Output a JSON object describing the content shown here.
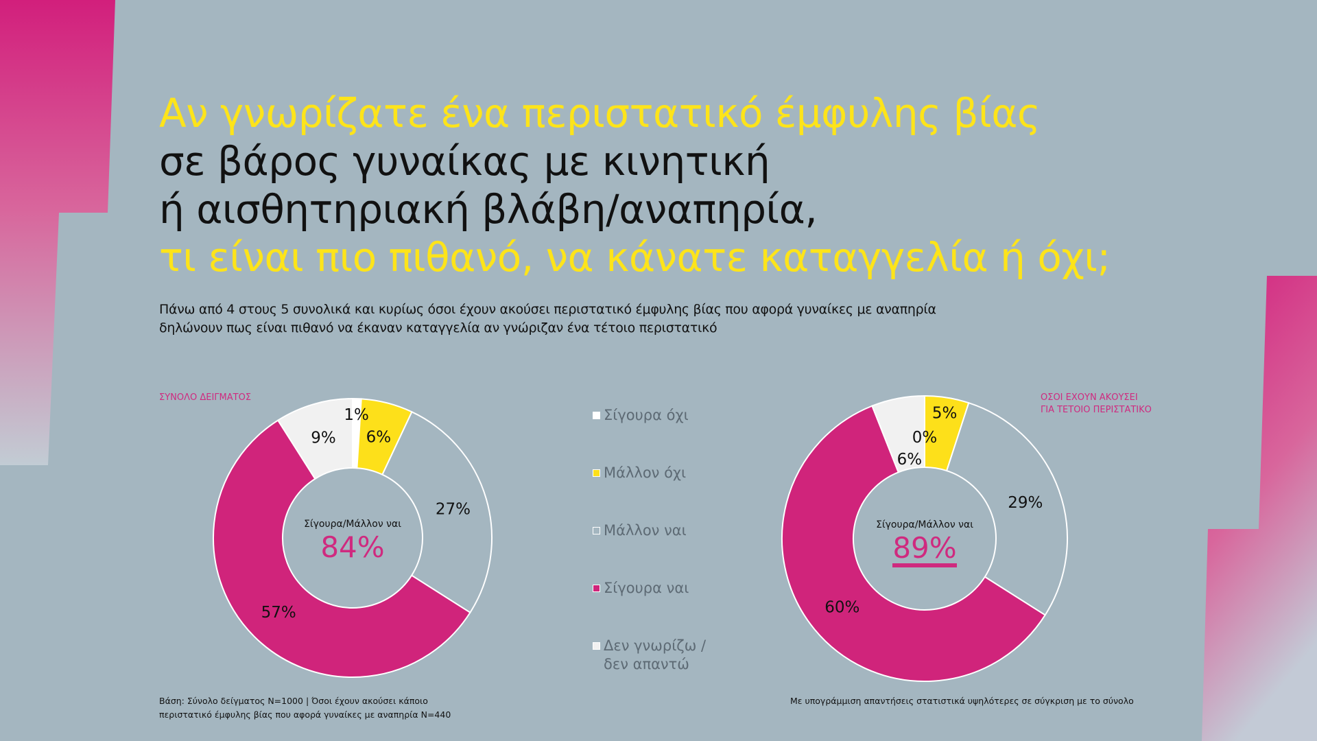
{
  "title": {
    "line1": "Αν γνωρίζατε ένα περιστατικό έμφυλης βίας",
    "line2": "σε βάρος γυναίκας με κινητική",
    "line3": "ή αισθητηριακή βλάβη/αναπηρία,",
    "line4": "τι είναι πιο πιθανό, να κάνατε καταγγελία ή όχι;"
  },
  "subtitle": {
    "line1": "Πάνω από 4 στους 5 συνολικά και κυρίως όσοι έχουν ακούσει περιστατικό έμφυλης βίας που αφορά γυναίκες με αναπηρία",
    "line2": "δηλώνουν πως είναι πιθανό να έκαναν καταγγελία αν γνώριζαν ένα τέτοιο περιστατικό"
  },
  "legend": [
    {
      "label": "Σίγουρα όχι",
      "color": "#ffffff"
    },
    {
      "label": "Μάλλον όχι",
      "color": "#fde01a"
    },
    {
      "label": "Μάλλον ναι",
      "color": "#a4b6c0"
    },
    {
      "label": "Σίγουρα ναι",
      "color": "#d0247b"
    },
    {
      "label": "Δεν γνωρίζω / δεν απαντώ",
      "color": "#f1f1f1"
    }
  ],
  "chart_data": [
    {
      "type": "pie",
      "title": "ΣΥΝΟΛΟ ΔΕΙΓΜΑΤΟΣ",
      "categories": [
        "Σίγουρα όχι",
        "Μάλλον όχι",
        "Μάλλον ναι",
        "Σίγουρα ναι",
        "Δεν γνωρίζω / δεν απαντώ"
      ],
      "values": [
        1,
        6,
        27,
        57,
        9
      ],
      "labels": [
        "1%",
        "6%",
        "27%",
        "57%",
        "9%"
      ],
      "center_label": "Σίγουρα/Μάλλον ναι",
      "center_value": "84%",
      "center_underlined": false
    },
    {
      "type": "pie",
      "title_line1": "ΟΣΟΙ ΕΧΟΥΝ ΑΚΟΥΣΕΙ",
      "title_line2": "ΓΙΑ ΤΕΤΟΙΟ ΠΕΡΙΣΤΑΤΙΚΟ",
      "categories": [
        "Σίγουρα όχι",
        "Μάλλον όχι",
        "Μάλλον ναι",
        "Σίγουρα ναι",
        "Δεν γνωρίζω / δεν απαντώ"
      ],
      "values": [
        0,
        5,
        29,
        60,
        6
      ],
      "labels": [
        "0%",
        "5%",
        "29%",
        "60%",
        "6%"
      ],
      "center_label": "Σίγουρα/Μάλλον ναι",
      "center_value": "89%",
      "center_underlined": true
    }
  ],
  "footer": {
    "base_line1": "Βάση: Σύνολο δείγματος Ν=1000 | Όσοι έχουν ακούσει κάποιο",
    "base_line2": "περιστατικό έμφυλης βίας που αφορά γυναίκες με αναπηρία  Ν=440",
    "note": "Με υπογράμμιση απαντήσεις στατιστικά υψηλότερες σε σύγκριση με το σύνολο"
  },
  "colors": {
    "accent": "#d0247b",
    "highlight": "#fde41a",
    "background": "#a4b6c0"
  }
}
